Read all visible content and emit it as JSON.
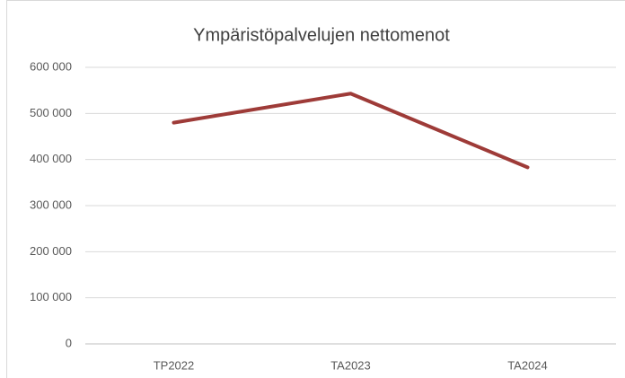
{
  "chart_data": {
    "type": "line",
    "title": "Ympäristöpalvelujen nettomenot",
    "categories": [
      "TP2022",
      "TA2023",
      "TA2024"
    ],
    "series": [
      {
        "name": "Ympäristöpalvelujen nettomenot",
        "color": "#9e3b38",
        "values": [
          480000,
          543000,
          383000
        ]
      }
    ],
    "ylim": [
      0,
      600000
    ],
    "yticks": [
      0,
      {
        "value": 100000,
        "label": "100 000"
      },
      {
        "value": 200000,
        "label": "200 000"
      },
      {
        "value": 300000,
        "label": "300 000"
      },
      {
        "value": 400000,
        "label": "400 000"
      },
      {
        "value": 500000,
        "label": "500 000"
      },
      {
        "value": 600000,
        "label": "600 000"
      }
    ],
    "grid": true
  }
}
